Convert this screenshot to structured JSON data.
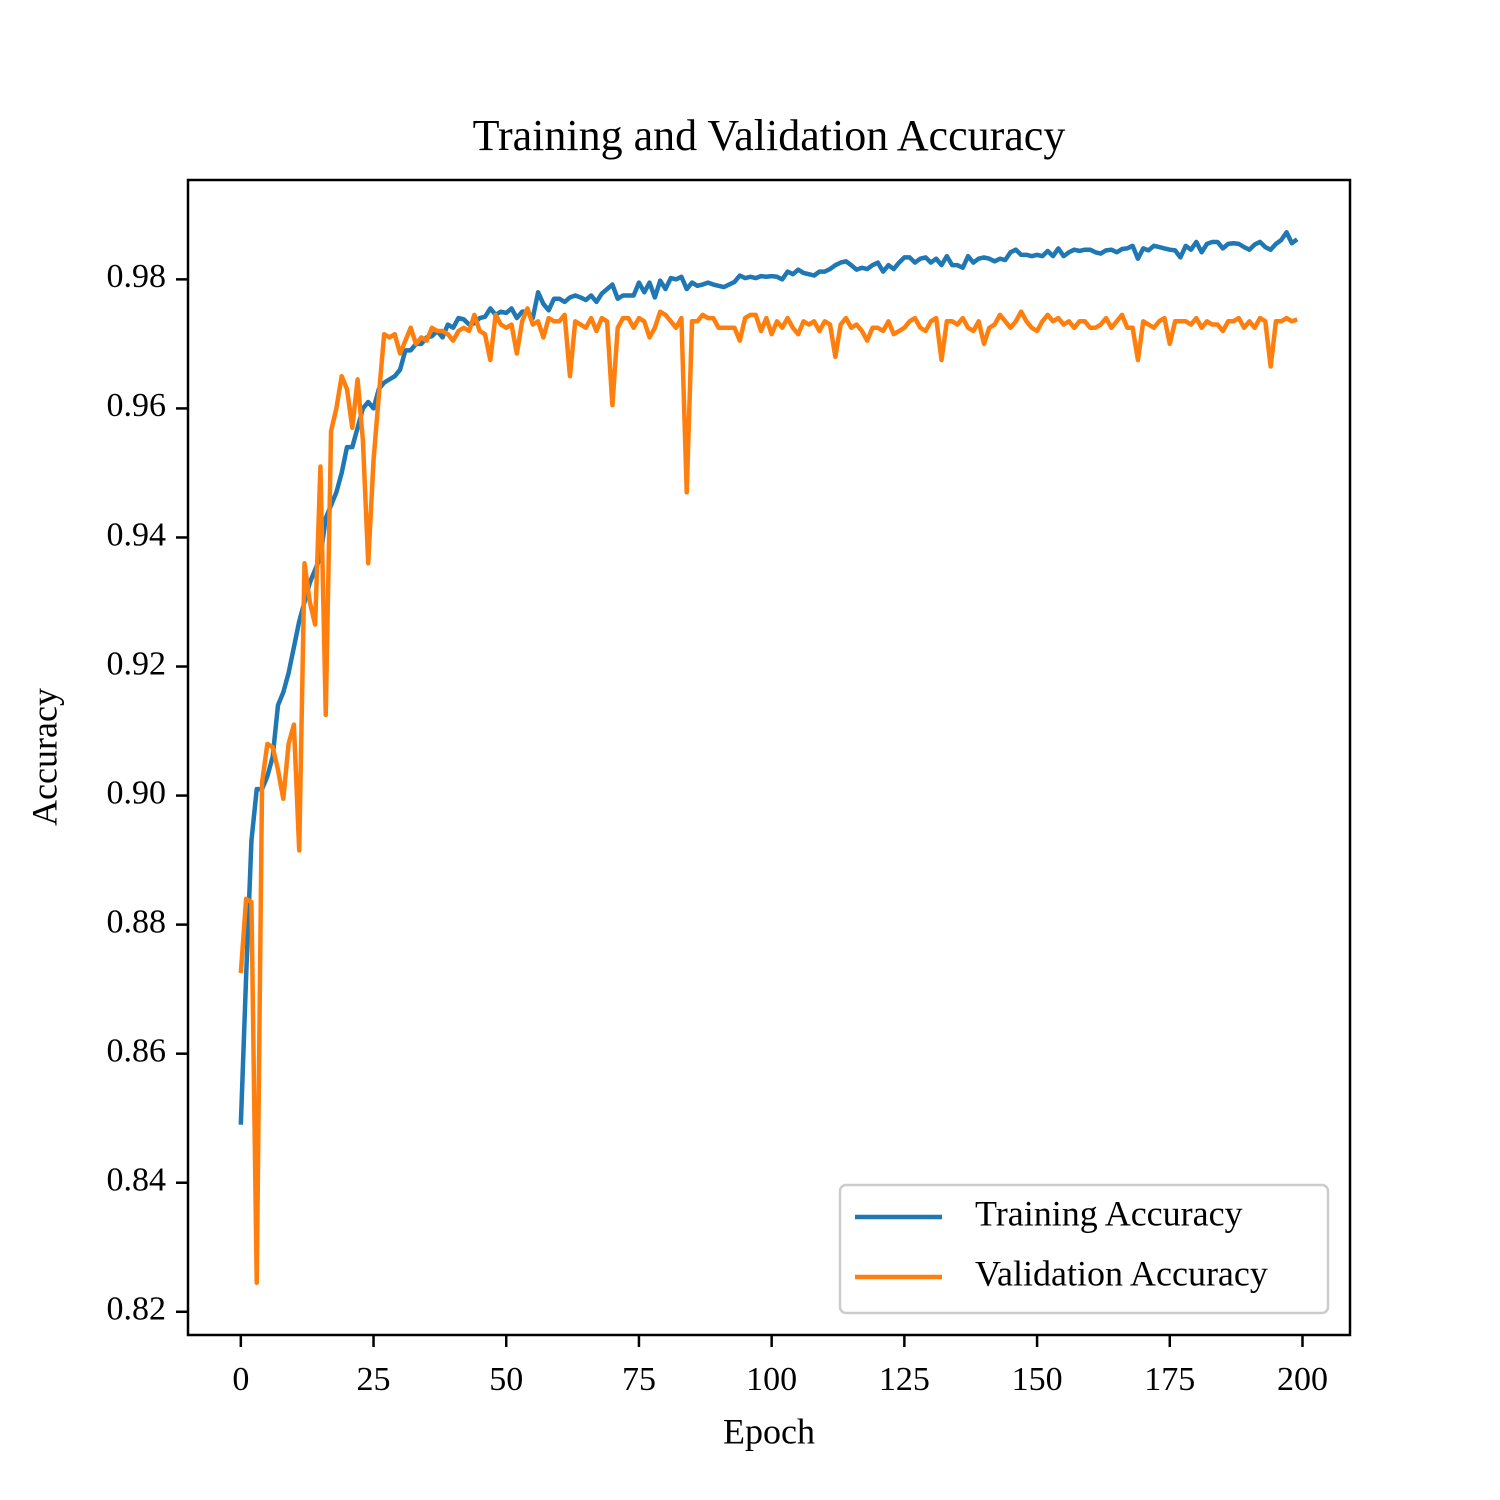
{
  "chart_data": {
    "type": "line",
    "title": "Training and Validation Accuracy",
    "x_label": "Epoch",
    "y_label": "Accuracy",
    "x": [
      0,
      1,
      2,
      3,
      4,
      5,
      6,
      7,
      8,
      9,
      10,
      11,
      12,
      13,
      14,
      15,
      16,
      17,
      18,
      19,
      20,
      21,
      22,
      23,
      24,
      25,
      26,
      27,
      28,
      29,
      30,
      31,
      32,
      33,
      34,
      35,
      36,
      37,
      38,
      39,
      40,
      41,
      42,
      43,
      44,
      45,
      46,
      47,
      48,
      49,
      50,
      51,
      52,
      53,
      54,
      55,
      56,
      57,
      58,
      59,
      60,
      61,
      62,
      63,
      64,
      65,
      66,
      67,
      68,
      69,
      70,
      71,
      72,
      73,
      74,
      75,
      76,
      77,
      78,
      79,
      80,
      81,
      82,
      83,
      84,
      85,
      86,
      87,
      88,
      89,
      90,
      91,
      92,
      93,
      94,
      95,
      96,
      97,
      98,
      99,
      100,
      101,
      102,
      103,
      104,
      105,
      106,
      107,
      108,
      109,
      110,
      111,
      112,
      113,
      114,
      115,
      116,
      117,
      118,
      119,
      120,
      121,
      122,
      123,
      124,
      125,
      126,
      127,
      128,
      129,
      130,
      131,
      132,
      133,
      134,
      135,
      136,
      137,
      138,
      139,
      140,
      141,
      142,
      143,
      144,
      145,
      146,
      147,
      148,
      149,
      150,
      151,
      152,
      153,
      154,
      155,
      156,
      157,
      158,
      159,
      160,
      161,
      162,
      163,
      164,
      165,
      166,
      167,
      168,
      169,
      170,
      171,
      172,
      173,
      174,
      175,
      176,
      177,
      178,
      179,
      180,
      181,
      182,
      183,
      184,
      185,
      186,
      187,
      188,
      189,
      190,
      191,
      192,
      193,
      194,
      195,
      196,
      197,
      198,
      199
    ],
    "series": [
      {
        "name": "Training Accuracy",
        "color": "#1f77b4",
        "values": [
          0.849,
          0.872,
          0.893,
          0.901,
          0.901,
          0.903,
          0.906,
          0.914,
          0.916,
          0.919,
          0.923,
          0.927,
          0.93,
          0.933,
          0.935,
          0.937,
          0.943,
          0.945,
          0.947,
          0.95,
          0.954,
          0.954,
          0.957,
          0.96,
          0.961,
          0.96,
          0.963,
          0.964,
          0.9645,
          0.965,
          0.966,
          0.969,
          0.969,
          0.97,
          0.97,
          0.971,
          0.9712,
          0.972,
          0.971,
          0.973,
          0.9725,
          0.974,
          0.9738,
          0.973,
          0.9732,
          0.974,
          0.9742,
          0.9755,
          0.9745,
          0.975,
          0.9748,
          0.9755,
          0.974,
          0.975,
          0.975,
          0.974,
          0.978,
          0.9762,
          0.9752,
          0.977,
          0.977,
          0.9765,
          0.9772,
          0.9775,
          0.9772,
          0.9768,
          0.9775,
          0.9765,
          0.9778,
          0.9785,
          0.9792,
          0.977,
          0.9775,
          0.9775,
          0.9775,
          0.9795,
          0.978,
          0.9795,
          0.9772,
          0.9798,
          0.9785,
          0.9802,
          0.98,
          0.9804,
          0.9785,
          0.9795,
          0.979,
          0.9792,
          0.9795,
          0.9792,
          0.979,
          0.9788,
          0.9792,
          0.9796,
          0.9806,
          0.9802,
          0.9804,
          0.9802,
          0.9805,
          0.9804,
          0.9805,
          0.9804,
          0.98,
          0.9812,
          0.9808,
          0.9815,
          0.981,
          0.9808,
          0.9806,
          0.9812,
          0.9812,
          0.9816,
          0.9822,
          0.9826,
          0.9828,
          0.9822,
          0.9815,
          0.9818,
          0.9816,
          0.9822,
          0.9826,
          0.9812,
          0.9822,
          0.9816,
          0.9826,
          0.9834,
          0.9834,
          0.9826,
          0.9832,
          0.9834,
          0.9826,
          0.9832,
          0.9822,
          0.9836,
          0.9822,
          0.9822,
          0.9818,
          0.9836,
          0.9826,
          0.9832,
          0.9834,
          0.9832,
          0.9828,
          0.9832,
          0.983,
          0.9842,
          0.9846,
          0.9838,
          0.9838,
          0.9836,
          0.9838,
          0.9836,
          0.9844,
          0.9836,
          0.9848,
          0.9836,
          0.9842,
          0.9846,
          0.9844,
          0.9846,
          0.9846,
          0.9842,
          0.984,
          0.9845,
          0.9846,
          0.9842,
          0.9847,
          0.9848,
          0.9852,
          0.9832,
          0.9848,
          0.9845,
          0.9852,
          0.985,
          0.9848,
          0.9846,
          0.9845,
          0.9834,
          0.9852,
          0.9846,
          0.9858,
          0.9842,
          0.9855,
          0.9858,
          0.9858,
          0.9848,
          0.9855,
          0.9856,
          0.9855,
          0.985,
          0.9846,
          0.9854,
          0.9858,
          0.985,
          0.9846,
          0.9855,
          0.9861,
          0.9873,
          0.9856,
          0.9862
        ]
      },
      {
        "name": "Validation Accuracy",
        "color": "#ff7f0e",
        "values": [
          0.8725,
          0.884,
          0.8835,
          0.8245,
          0.902,
          0.908,
          0.9075,
          0.904,
          0.8995,
          0.908,
          0.911,
          0.8915,
          0.936,
          0.93,
          0.9265,
          0.951,
          0.9125,
          0.9565,
          0.96,
          0.965,
          0.963,
          0.957,
          0.9645,
          0.955,
          0.936,
          0.952,
          0.962,
          0.9715,
          0.971,
          0.9715,
          0.9685,
          0.9705,
          0.9725,
          0.97,
          0.971,
          0.9705,
          0.9725,
          0.972,
          0.972,
          0.9715,
          0.9705,
          0.972,
          0.9725,
          0.972,
          0.9745,
          0.972,
          0.9715,
          0.9675,
          0.9745,
          0.973,
          0.9725,
          0.973,
          0.9685,
          0.9735,
          0.9755,
          0.973,
          0.9735,
          0.971,
          0.974,
          0.9735,
          0.9735,
          0.9745,
          0.965,
          0.9735,
          0.973,
          0.9725,
          0.974,
          0.972,
          0.974,
          0.9735,
          0.9605,
          0.9725,
          0.974,
          0.974,
          0.9725,
          0.974,
          0.9735,
          0.971,
          0.9725,
          0.975,
          0.9745,
          0.9735,
          0.9725,
          0.974,
          0.947,
          0.9735,
          0.9735,
          0.9745,
          0.974,
          0.974,
          0.9725,
          0.9725,
          0.9725,
          0.9725,
          0.9705,
          0.974,
          0.9745,
          0.9745,
          0.972,
          0.974,
          0.9715,
          0.9735,
          0.9725,
          0.974,
          0.9725,
          0.9715,
          0.9735,
          0.973,
          0.9735,
          0.972,
          0.9735,
          0.973,
          0.968,
          0.973,
          0.974,
          0.9725,
          0.973,
          0.972,
          0.9705,
          0.9725,
          0.9725,
          0.972,
          0.9735,
          0.9715,
          0.972,
          0.9725,
          0.9735,
          0.974,
          0.9725,
          0.972,
          0.9735,
          0.974,
          0.9675,
          0.9735,
          0.9735,
          0.973,
          0.974,
          0.9725,
          0.972,
          0.9735,
          0.97,
          0.9725,
          0.973,
          0.9745,
          0.9735,
          0.9725,
          0.9735,
          0.975,
          0.9735,
          0.9725,
          0.972,
          0.9735,
          0.9745,
          0.9735,
          0.974,
          0.973,
          0.9735,
          0.9725,
          0.9735,
          0.9735,
          0.9725,
          0.9725,
          0.973,
          0.974,
          0.9725,
          0.9735,
          0.9745,
          0.9725,
          0.9725,
          0.9675,
          0.9735,
          0.973,
          0.9725,
          0.9735,
          0.974,
          0.97,
          0.9735,
          0.9735,
          0.9735,
          0.973,
          0.974,
          0.9725,
          0.9735,
          0.973,
          0.973,
          0.972,
          0.9735,
          0.9735,
          0.974,
          0.9725,
          0.9735,
          0.9725,
          0.974,
          0.9735,
          0.9665,
          0.9735,
          0.9735,
          0.974,
          0.9735,
          0.9738
        ]
      }
    ],
    "xlim": [
      -9.95,
      208.95
    ],
    "ylim": [
      0.8164,
      0.9954
    ],
    "xticks": [
      0,
      25,
      50,
      75,
      100,
      125,
      150,
      175,
      200
    ],
    "yticks": [
      0.82,
      0.84,
      0.86,
      0.88,
      {
        "value": 0.9,
        "label": "0.90"
      },
      0.92,
      0.94,
      0.96,
      0.98
    ],
    "grid": false,
    "legend": "lower right"
  }
}
